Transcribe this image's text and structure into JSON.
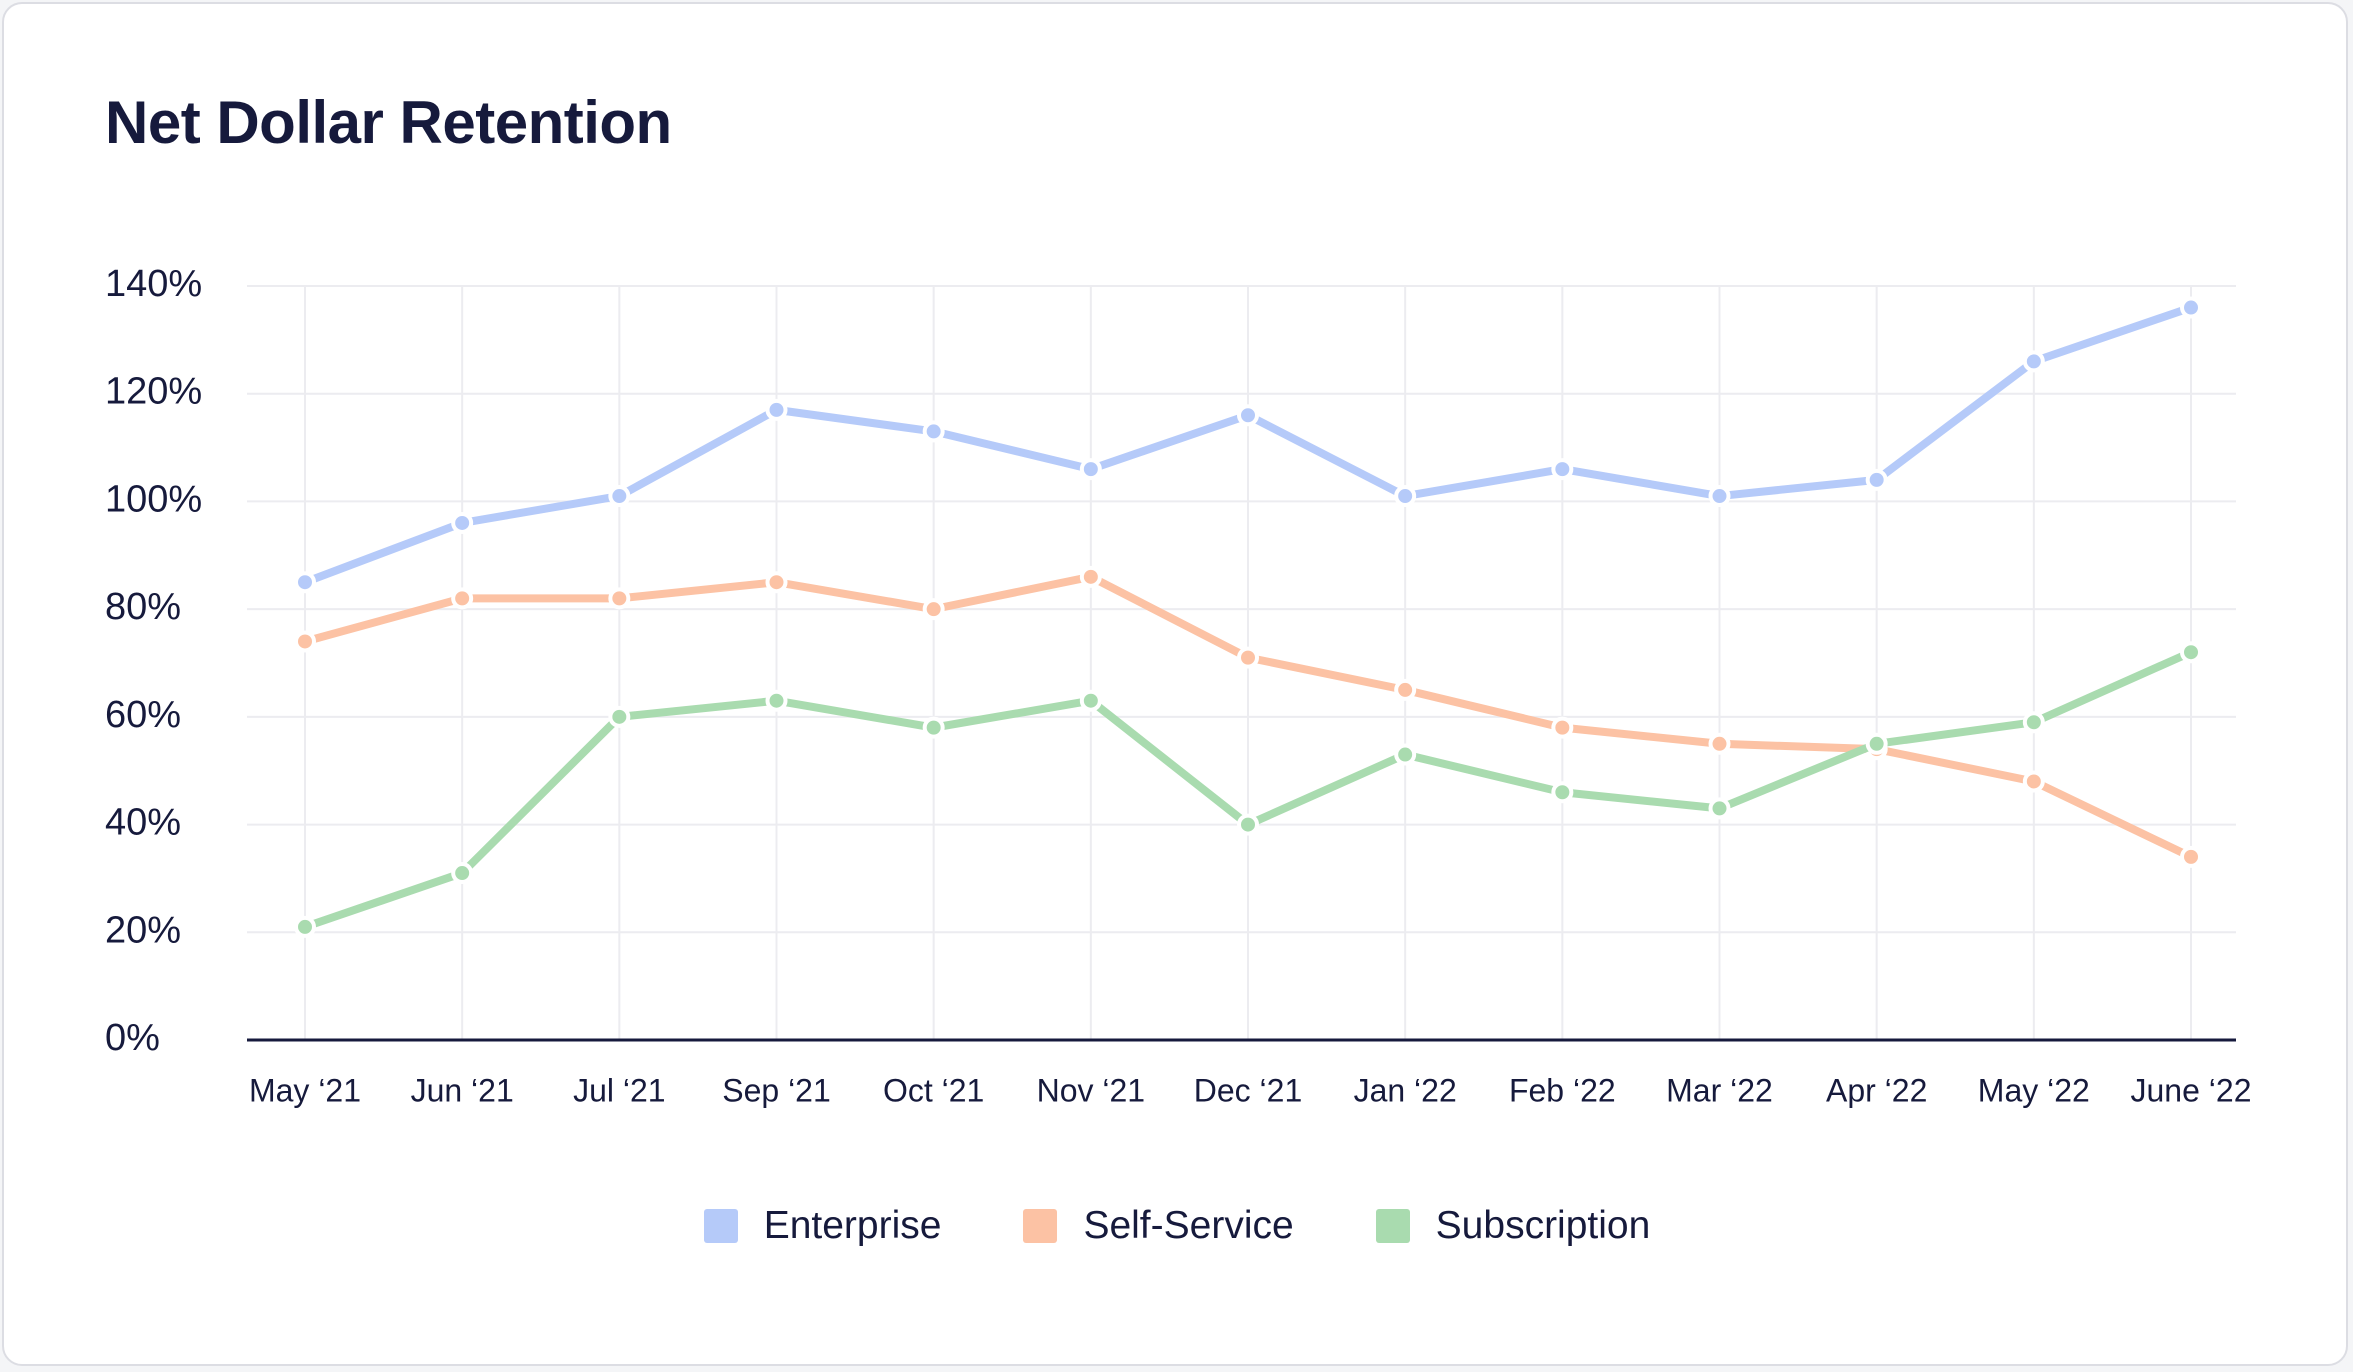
{
  "title": "Net Dollar Retention",
  "chart_data": {
    "type": "line",
    "title": "Net Dollar Retention",
    "xlabel": "",
    "ylabel": "",
    "categories": [
      "May ‘21",
      "Jun ‘21",
      "Jul ‘21",
      "Sep ‘21",
      "Oct ‘21",
      "Nov ‘21",
      "Dec ‘21",
      "Jan ‘22",
      "Feb ‘22",
      "Mar ‘22",
      "Apr ‘22",
      "May ‘22",
      "June ‘22"
    ],
    "ylim": [
      0,
      140
    ],
    "yticks": [
      0,
      20,
      40,
      60,
      80,
      100,
      120,
      140
    ],
    "ytick_labels": [
      "0%",
      "20%",
      "40%",
      "60%",
      "80%",
      "100%",
      "120%",
      "140%"
    ],
    "grid": true,
    "legend_position": "bottom",
    "series": [
      {
        "name": "Enterprise",
        "color": "#b5caf9",
        "values": [
          85,
          96,
          101,
          117,
          113,
          106,
          116,
          101,
          106,
          101,
          104,
          126,
          136
        ]
      },
      {
        "name": "Self-Service",
        "color": "#fcc2a4",
        "values": [
          74,
          82,
          82,
          85,
          80,
          86,
          71,
          65,
          58,
          55,
          54,
          48,
          34
        ]
      },
      {
        "name": "Subscription",
        "color": "#a9dbaf",
        "values": [
          21,
          31,
          60,
          63,
          58,
          63,
          40,
          53,
          46,
          43,
          55,
          59,
          72
        ]
      }
    ]
  }
}
